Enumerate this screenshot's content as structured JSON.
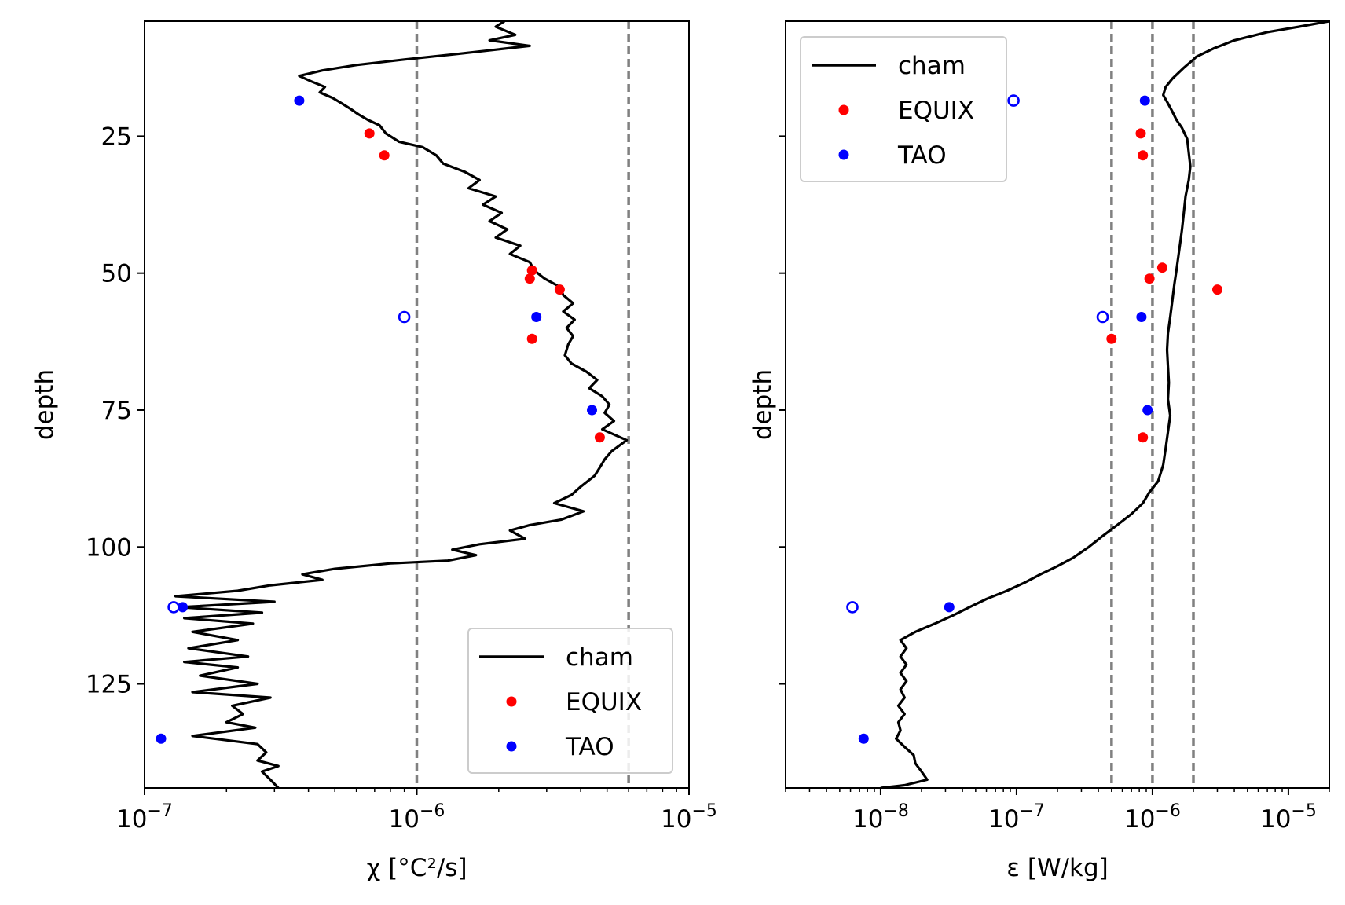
{
  "chart_data": [
    {
      "type": "line",
      "id": "chi",
      "xlabel": "χ [°C²/s]",
      "ylabel": "depth",
      "xscale": "log",
      "xlim": [
        1e-07,
        1e-05
      ],
      "ylim": [
        144,
        4
      ],
      "x_tick_labels": [
        {
          "base": "10",
          "exp": "−7",
          "value": 1e-07
        },
        {
          "base": "10",
          "exp": "−6",
          "value": 1e-06
        },
        {
          "base": "10",
          "exp": "−5",
          "value": 1e-05
        }
      ],
      "y_ticks": [
        25,
        50,
        75,
        100,
        125
      ],
      "y_tick_labels": [
        "25",
        "50",
        "75",
        "100",
        "125"
      ],
      "reference_lines_x": [
        1e-06,
        6e-06
      ],
      "legend": {
        "position": "lower right",
        "entries": [
          "cham",
          "EQUIX",
          "TAO"
        ]
      },
      "series": [
        {
          "name": "cham",
          "style": "line",
          "color": "#000000",
          "points": [
            [
              2.1e-06,
              4
            ],
            [
              1.95e-06,
              5
            ],
            [
              2.3e-06,
              6.5
            ],
            [
              1.85e-06,
              7.5
            ],
            [
              2.6e-06,
              8.5
            ],
            [
              1.4e-06,
              10
            ],
            [
              9e-07,
              11
            ],
            [
              6e-07,
              12
            ],
            [
              4.5e-07,
              13
            ],
            [
              3.7e-07,
              14
            ],
            [
              4.1e-07,
              15
            ],
            [
              4.6e-07,
              16
            ],
            [
              4.4e-07,
              17
            ],
            [
              4.9e-07,
              18
            ],
            [
              5.3e-07,
              19
            ],
            [
              5.7e-07,
              20
            ],
            [
              6.1e-07,
              21
            ],
            [
              6.6e-07,
              22
            ],
            [
              7.3e-07,
              23
            ],
            [
              7.7e-07,
              24.5
            ],
            [
              8.6e-07,
              26
            ],
            [
              1.05e-06,
              27
            ],
            [
              1.18e-06,
              28.5
            ],
            [
              1.25e-06,
              30
            ],
            [
              1.5e-06,
              31.5
            ],
            [
              1.7e-06,
              33
            ],
            [
              1.55e-06,
              34.5
            ],
            [
              1.95e-06,
              36
            ],
            [
              1.75e-06,
              37.5
            ],
            [
              2.05e-06,
              39
            ],
            [
              1.85e-06,
              40.5
            ],
            [
              2.15e-06,
              42
            ],
            [
              1.95e-06,
              43.5
            ],
            [
              2.4e-06,
              45
            ],
            [
              2.2e-06,
              46.5
            ],
            [
              2.6e-06,
              48
            ],
            [
              2.7e-06,
              49.5
            ],
            [
              2.95e-06,
              51
            ],
            [
              3.35e-06,
              52.5
            ],
            [
              3.45e-06,
              54
            ],
            [
              3.75e-06,
              55.5
            ],
            [
              3.45e-06,
              57
            ],
            [
              3.8e-06,
              58.5
            ],
            [
              3.55e-06,
              60
            ],
            [
              3.75e-06,
              61.5
            ],
            [
              3.6e-06,
              63
            ],
            [
              3.5e-06,
              65
            ],
            [
              3.7e-06,
              66.5
            ],
            [
              4.2e-06,
              68
            ],
            [
              4.6e-06,
              69.5
            ],
            [
              4.3e-06,
              71
            ],
            [
              4.8e-06,
              72.5
            ],
            [
              5.1e-06,
              74
            ],
            [
              4.9e-06,
              75.5
            ],
            [
              5.3e-06,
              77
            ],
            [
              4.8e-06,
              78.5
            ],
            [
              5.9e-06,
              80.5
            ],
            [
              5.2e-06,
              82.5
            ],
            [
              4.9e-06,
              84
            ],
            [
              4.7e-06,
              85.5
            ],
            [
              4.5e-06,
              87
            ],
            [
              4e-06,
              89
            ],
            [
              3.7e-06,
              90.5
            ],
            [
              3.2e-06,
              92
            ],
            [
              4.1e-06,
              93.5
            ],
            [
              3.4e-06,
              95
            ],
            [
              2.6e-06,
              96
            ],
            [
              2.2e-06,
              97
            ],
            [
              2.5e-06,
              98.5
            ],
            [
              1.7e-06,
              99.5
            ],
            [
              1.35e-06,
              100.5
            ],
            [
              1.65e-06,
              101.5
            ],
            [
              1.3e-06,
              102.5
            ],
            [
              8e-07,
              103
            ],
            [
              5e-07,
              104
            ],
            [
              3.8e-07,
              105
            ],
            [
              4.5e-07,
              106
            ],
            [
              2.9e-07,
              107
            ],
            [
              2.2e-07,
              108
            ],
            [
              1.3e-07,
              109
            ],
            [
              3e-07,
              110
            ],
            [
              1.35e-07,
              111
            ],
            [
              2.7e-07,
              112
            ],
            [
              1.4e-07,
              113
            ],
            [
              2.5e-07,
              114
            ],
            [
              1.5e-07,
              115.5
            ],
            [
              2.2e-07,
              117
            ],
            [
              1.45e-07,
              118.5
            ],
            [
              2.4e-07,
              120
            ],
            [
              1.4e-07,
              121
            ],
            [
              2.2e-07,
              122
            ],
            [
              1.6e-07,
              123.5
            ],
            [
              2.6e-07,
              125
            ],
            [
              1.5e-07,
              126.5
            ],
            [
              2.9e-07,
              127.5
            ],
            [
              2.1e-07,
              129
            ],
            [
              2.3e-07,
              130.5
            ],
            [
              2e-07,
              132
            ],
            [
              2.55e-07,
              133
            ],
            [
              1.5e-07,
              134.5
            ],
            [
              2.6e-07,
              136
            ],
            [
              2.8e-07,
              137.5
            ],
            [
              2.6e-07,
              139
            ],
            [
              3.1e-07,
              140
            ],
            [
              2.7e-07,
              141
            ],
            [
              2.9e-07,
              142.5
            ],
            [
              3.1e-07,
              144
            ]
          ]
        },
        {
          "name": "EQUIX",
          "style": "markers",
          "color": "#ff0000",
          "filled": true,
          "points": [
            [
              6.7e-07,
              24.5
            ],
            [
              7.6e-07,
              28.5
            ],
            [
              2.65e-06,
              49.5
            ],
            [
              2.6e-06,
              51
            ],
            [
              3.35e-06,
              53
            ],
            [
              2.65e-06,
              62
            ],
            [
              4.7e-06,
              80
            ]
          ]
        },
        {
          "name": "TAO",
          "style": "markers",
          "color": "#0000ff",
          "filled": true,
          "points": [
            [
              3.7e-07,
              18.5
            ],
            [
              2.75e-06,
              58
            ],
            [
              4.4e-06,
              75
            ],
            [
              1.38e-07,
              111
            ],
            [
              1.15e-07,
              135
            ]
          ]
        },
        {
          "name": "",
          "style": "markers",
          "color": "#0000ff",
          "filled": false,
          "points": [
            [
              9e-07,
              58
            ],
            [
              1.28e-07,
              111
            ]
          ]
        }
      ]
    },
    {
      "type": "line",
      "id": "epsilon",
      "xlabel": "ε [W/kg]",
      "ylabel": "depth",
      "xscale": "log",
      "xlim": [
        2e-09,
        2e-05
      ],
      "ylim": [
        144,
        4
      ],
      "x_tick_labels": [
        {
          "base": "10",
          "exp": "−8",
          "value": 1e-08
        },
        {
          "base": "10",
          "exp": "−7",
          "value": 1e-07
        },
        {
          "base": "10",
          "exp": "−6",
          "value": 1e-06
        },
        {
          "base": "10",
          "exp": "−5",
          "value": 1e-05
        }
      ],
      "y_ticks": [
        25,
        50,
        75,
        100,
        125
      ],
      "y_tick_labels": [],
      "reference_lines_x": [
        5e-07,
        1e-06,
        2e-06
      ],
      "legend": {
        "position": "upper left",
        "entries": [
          "cham",
          "EQUIX",
          "TAO"
        ]
      },
      "series": [
        {
          "name": "cham",
          "style": "line",
          "color": "#000000",
          "points": [
            [
              2e-05,
              4
            ],
            [
              1.2e-05,
              5
            ],
            [
              7e-06,
              6
            ],
            [
              4e-06,
              7.5
            ],
            [
              2.8e-06,
              9
            ],
            [
              2.1e-06,
              10.5
            ],
            [
              2e-06,
              11
            ],
            [
              1.7e-06,
              12.5
            ],
            [
              1.4e-06,
              14.5
            ],
            [
              1.25e-06,
              16
            ],
            [
              1.2e-06,
              17.5
            ],
            [
              1.3e-06,
              19
            ],
            [
              1.4e-06,
              20.5
            ],
            [
              1.5e-06,
              22
            ],
            [
              1.65e-06,
              23.5
            ],
            [
              1.8e-06,
              25.5
            ],
            [
              1.85e-06,
              28
            ],
            [
              1.9e-06,
              30.5
            ],
            [
              1.85e-06,
              33
            ],
            [
              1.75e-06,
              36
            ],
            [
              1.7e-06,
              39
            ],
            [
              1.65e-06,
              42
            ],
            [
              1.6e-06,
              44.5
            ],
            [
              1.55e-06,
              47
            ],
            [
              1.5e-06,
              49.5
            ],
            [
              1.45e-06,
              52
            ],
            [
              1.4e-06,
              55
            ],
            [
              1.35e-06,
              58
            ],
            [
              1.3e-06,
              61
            ],
            [
              1.28e-06,
              64
            ],
            [
              1.3e-06,
              67
            ],
            [
              1.32e-06,
              70
            ],
            [
              1.3e-06,
              73
            ],
            [
              1.35e-06,
              76
            ],
            [
              1.3e-06,
              79
            ],
            [
              1.25e-06,
              82
            ],
            [
              1.2e-06,
              85
            ],
            [
              1.1e-06,
              88
            ],
            [
              9.5e-07,
              90
            ],
            [
              8.5e-07,
              92
            ],
            [
              7e-07,
              94
            ],
            [
              5.5e-07,
              96
            ],
            [
              4.3e-07,
              98
            ],
            [
              3.4e-07,
              100
            ],
            [
              2.6e-07,
              102
            ],
            [
              2e-07,
              103.5
            ],
            [
              1.5e-07,
              105
            ],
            [
              1.15e-07,
              106.5
            ],
            [
              8.5e-08,
              108
            ],
            [
              6e-08,
              109.5
            ],
            [
              4.5e-08,
              111
            ],
            [
              3.4e-08,
              112.5
            ],
            [
              2.5e-08,
              114
            ],
            [
              1.8e-08,
              115.5
            ],
            [
              1.4e-08,
              117
            ],
            [
              1.55e-08,
              118.5
            ],
            [
              1.4e-08,
              120
            ],
            [
              1.55e-08,
              121.5
            ],
            [
              1.4e-08,
              123
            ],
            [
              1.55e-08,
              124.5
            ],
            [
              1.4e-08,
              126
            ],
            [
              1.5e-08,
              127.5
            ],
            [
              1.35e-08,
              129
            ],
            [
              1.5e-08,
              130.5
            ],
            [
              1.35e-08,
              132
            ],
            [
              1.4e-08,
              133.5
            ],
            [
              1.3e-08,
              135
            ],
            [
              1.5e-08,
              136.5
            ],
            [
              1.75e-08,
              138
            ],
            [
              1.8e-08,
              139.5
            ],
            [
              2e-08,
              141
            ],
            [
              2.2e-08,
              142.5
            ],
            [
              1.5e-08,
              143.5
            ],
            [
              1e-08,
              144
            ]
          ]
        },
        {
          "name": "EQUIX",
          "style": "markers",
          "color": "#ff0000",
          "filled": true,
          "points": [
            [
              8.2e-07,
              24.5
            ],
            [
              8.5e-07,
              28.5
            ],
            [
              1.18e-06,
              49
            ],
            [
              9.5e-07,
              51
            ],
            [
              3e-06,
              53
            ],
            [
              5e-07,
              62
            ],
            [
              8.5e-07,
              80
            ]
          ]
        },
        {
          "name": "TAO",
          "style": "markers",
          "color": "#0000ff",
          "filled": true,
          "points": [
            [
              8.8e-07,
              18.5
            ],
            [
              8.3e-07,
              58
            ],
            [
              9.2e-07,
              75
            ],
            [
              3.2e-08,
              111
            ],
            [
              7.5e-09,
              135
            ]
          ]
        },
        {
          "name": "",
          "style": "markers",
          "color": "#0000ff",
          "filled": false,
          "points": [
            [
              9.5e-08,
              18.5
            ],
            [
              4.3e-07,
              58
            ],
            [
              6.2e-09,
              111
            ]
          ]
        }
      ]
    }
  ]
}
